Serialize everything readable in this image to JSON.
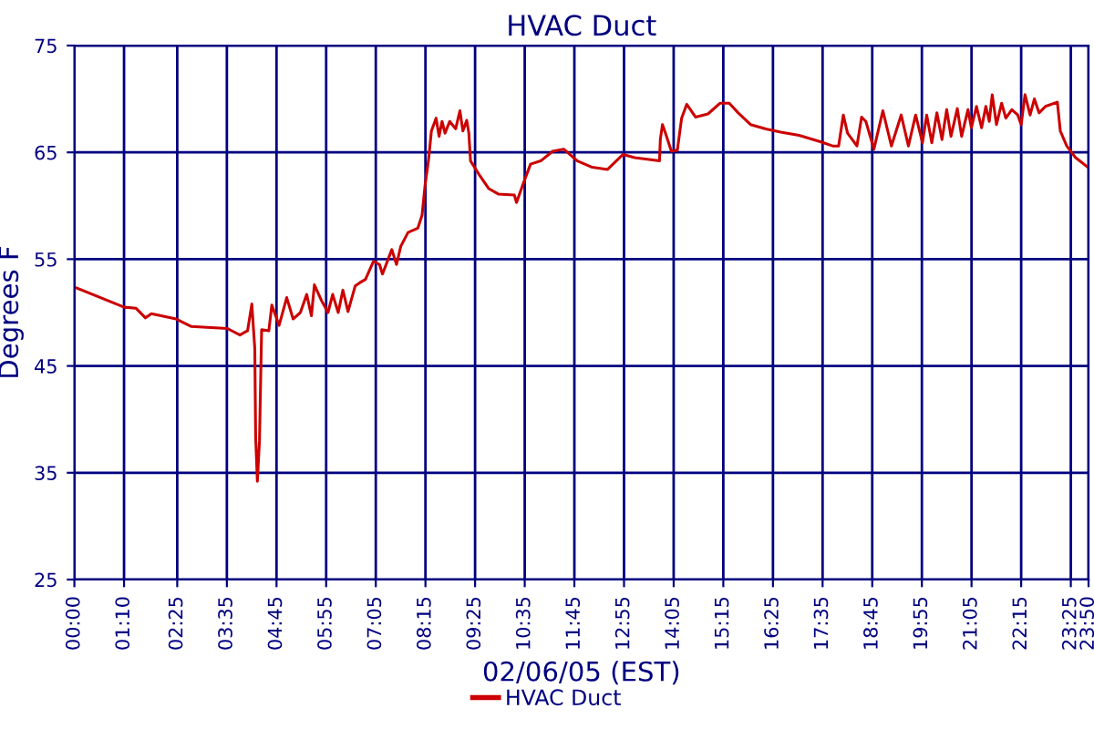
{
  "chart_data": {
    "type": "line",
    "title": "HVAC Duct",
    "xlabel": "02/06/05 (EST)",
    "ylabel": "Degrees F",
    "x": [
      0.06,
      1.17,
      1.45,
      1.67,
      1.81,
      2.39,
      2.74,
      3.6,
      3.89,
      4.07,
      4.17,
      4.24,
      4.26,
      4.3,
      4.35,
      4.4,
      4.57,
      4.64,
      4.81,
      4.99,
      5.14,
      5.31,
      5.46,
      5.57,
      5.64,
      5.81,
      5.96,
      6.07,
      6.2,
      6.31,
      6.43,
      6.6,
      6.71,
      6.84,
      7.03,
      7.17,
      7.24,
      7.46,
      7.57,
      7.67,
      7.84,
      8.07,
      8.17,
      8.24,
      8.32,
      8.39,
      8.5,
      8.57,
      8.64,
      8.71,
      8.82,
      8.96,
      9.06,
      9.13,
      9.22,
      9.27,
      9.31,
      9.53,
      9.74,
      9.96,
      10.34,
      10.39,
      10.56,
      10.72,
      10.96,
      11.24,
      11.5,
      11.82,
      12.17,
      12.53,
      12.89,
      13.17,
      13.75,
      13.77,
      13.82,
      13.89,
      14.03,
      14.17,
      14.27,
      14.39,
      14.6,
      14.89,
      15.17,
      15.39,
      15.6,
      15.89,
      16.25,
      16.6,
      17.03,
      17.53,
      17.82,
      17.96,
      18.07,
      18.17,
      18.39,
      18.5,
      18.6,
      18.79,
      19.0,
      19.2,
      19.43,
      19.6,
      19.77,
      19.93,
      20.03,
      20.15,
      20.27,
      20.39,
      20.5,
      20.6,
      20.75,
      20.85,
      21.0,
      21.08,
      21.2,
      21.32,
      21.42,
      21.5,
      21.57,
      21.67,
      21.79,
      21.89,
      22.03,
      22.17,
      22.25,
      22.34,
      22.46,
      22.56,
      22.67,
      22.82,
      23.1,
      23.17,
      23.32,
      23.53,
      23.82
    ],
    "series": [
      {
        "name": "HVAC Duct",
        "color": "#cc0000",
        "values": [
          52.3,
          50.5,
          50.4,
          49.5,
          49.9,
          49.4,
          48.7,
          48.5,
          47.9,
          48.3,
          50.8,
          46.6,
          38.3,
          34.2,
          38.0,
          48.4,
          48.3,
          50.7,
          48.8,
          51.4,
          49.4,
          50.0,
          51.7,
          49.7,
          52.6,
          51.1,
          50.0,
          51.7,
          50.0,
          52.1,
          50.1,
          52.5,
          52.8,
          53.1,
          54.8,
          54.5,
          53.6,
          55.9,
          54.5,
          56.2,
          57.5,
          57.9,
          59.1,
          61.9,
          64.2,
          67.0,
          68.2,
          66.5,
          67.9,
          66.8,
          67.9,
          67.2,
          68.9,
          67.0,
          68.0,
          66.8,
          64.2,
          62.8,
          61.6,
          61.1,
          61.0,
          60.3,
          62.2,
          63.9,
          64.2,
          65.1,
          65.3,
          64.2,
          63.6,
          63.4,
          64.8,
          64.5,
          64.2,
          66.2,
          67.6,
          66.8,
          65.1,
          65.2,
          68.2,
          69.5,
          68.3,
          68.6,
          69.6,
          69.6,
          68.7,
          67.6,
          67.2,
          66.9,
          66.6,
          66.0,
          65.6,
          65.6,
          68.5,
          66.8,
          65.6,
          68.3,
          67.9,
          65.3,
          68.9,
          65.6,
          68.5,
          65.6,
          68.5,
          65.9,
          68.5,
          65.9,
          68.7,
          66.2,
          69.0,
          66.5,
          69.1,
          66.5,
          69.0,
          67.3,
          69.3,
          67.3,
          69.3,
          67.9,
          70.4,
          67.6,
          69.6,
          68.2,
          69.0,
          68.5,
          67.6,
          70.4,
          68.5,
          70.0,
          68.7,
          69.3,
          69.7,
          67.0,
          65.6,
          64.5,
          63.6
        ]
      }
    ],
    "xlim": [
      0,
      23.833
    ],
    "xticks": [
      {
        "value": 0,
        "label": "00:00"
      },
      {
        "value": 1.1667,
        "label": "01:10"
      },
      {
        "value": 2.4167,
        "label": "02:25"
      },
      {
        "value": 3.5833,
        "label": "03:35"
      },
      {
        "value": 4.75,
        "label": "04:45"
      },
      {
        "value": 5.9167,
        "label": "05:55"
      },
      {
        "value": 7.0833,
        "label": "07:05"
      },
      {
        "value": 8.25,
        "label": "08:15"
      },
      {
        "value": 9.4167,
        "label": "09:25"
      },
      {
        "value": 10.5833,
        "label": "10:35"
      },
      {
        "value": 11.75,
        "label": "11:45"
      },
      {
        "value": 12.9167,
        "label": "12:55"
      },
      {
        "value": 14.0833,
        "label": "14:05"
      },
      {
        "value": 15.25,
        "label": "15:15"
      },
      {
        "value": 16.4167,
        "label": "16:25"
      },
      {
        "value": 17.5833,
        "label": "17:35"
      },
      {
        "value": 18.75,
        "label": "18:45"
      },
      {
        "value": 19.9167,
        "label": "19:55"
      },
      {
        "value": 21.0833,
        "label": "21:05"
      },
      {
        "value": 22.25,
        "label": "22:15"
      },
      {
        "value": 23.4167,
        "label": "23:25"
      },
      {
        "value": 23.833,
        "label": "23:50"
      }
    ],
    "ylim": [
      25,
      75
    ],
    "yticks": [
      25,
      35,
      45,
      55,
      65,
      75
    ],
    "grid": true,
    "legend": "bottom",
    "marker": "none",
    "line_style": "solid"
  }
}
